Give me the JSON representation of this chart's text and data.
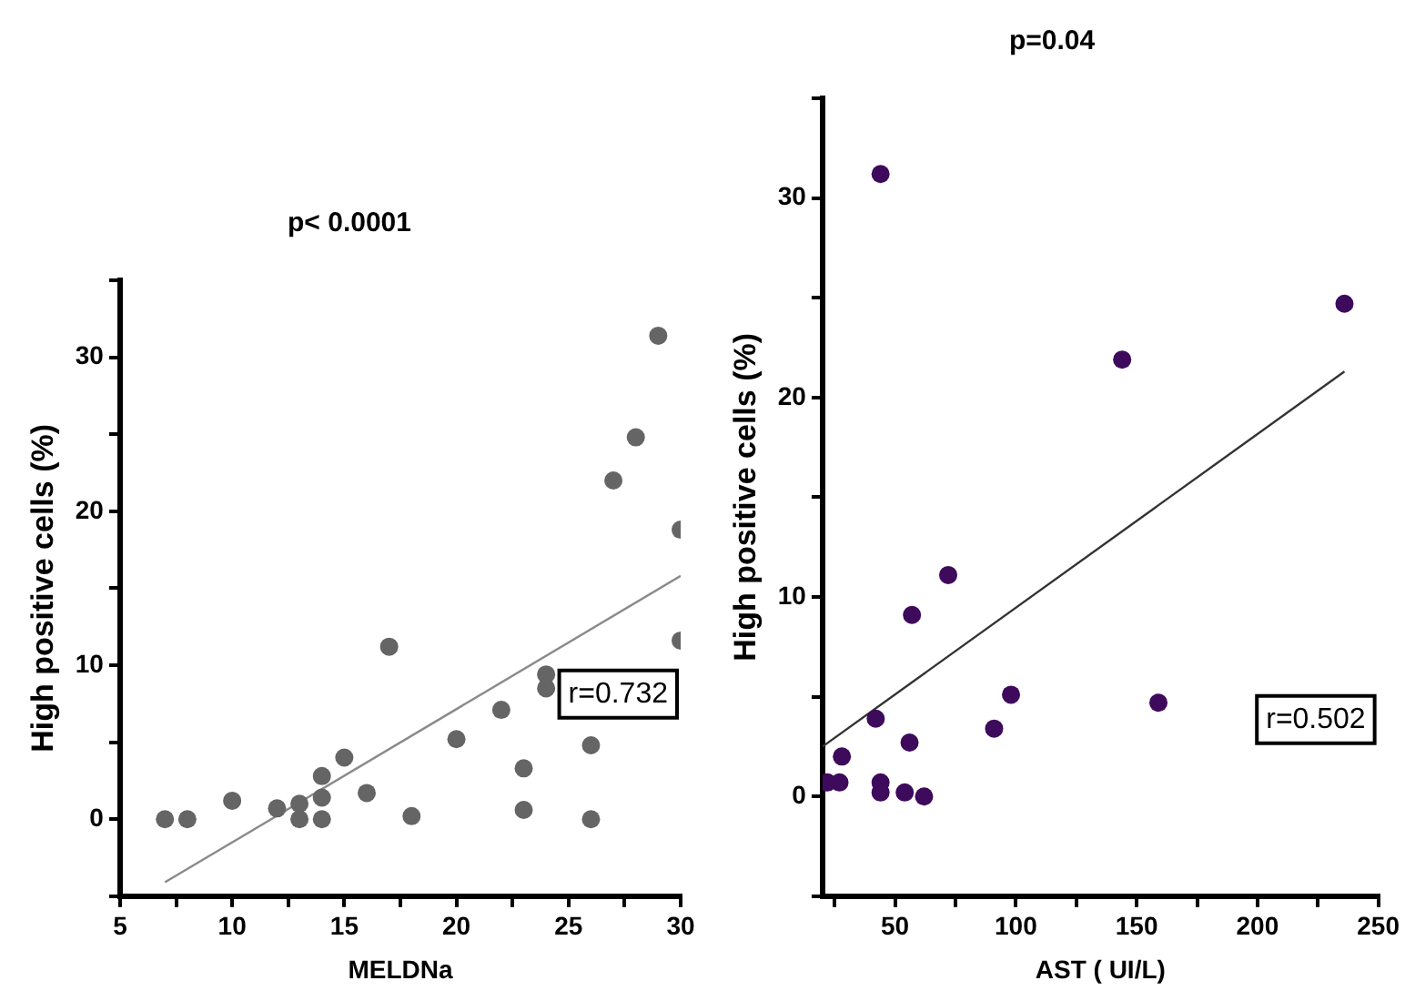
{
  "chart_data": [
    {
      "type": "scatter",
      "title": "p< 0.0001",
      "xlabel": "MELDNa",
      "ylabel": "High positive cells (%)",
      "xlim": [
        5,
        30
      ],
      "ylim": [
        -5,
        35
      ],
      "xticks": [
        5,
        {
          "value": 7.5,
          "label": null
        },
        10,
        {
          "value": 12.5,
          "label": null
        },
        15,
        {
          "value": 17.5,
          "label": null
        },
        20,
        {
          "value": 22.5,
          "label": null
        },
        25,
        {
          "value": 27.5,
          "label": null
        },
        30
      ],
      "yticks": [
        {
          "value": -5,
          "label": null
        },
        0,
        {
          "value": 5,
          "label": null
        },
        10,
        {
          "value": 15,
          "label": null
        },
        20,
        {
          "value": 25,
          "label": null
        },
        30,
        {
          "value": 35,
          "label": null
        }
      ],
      "marker": "circle",
      "legend": false,
      "grid": false,
      "annotations": [
        "r=0.732"
      ],
      "series": [
        {
          "color": "#656565",
          "x": [
            7,
            8,
            10,
            12,
            13,
            13,
            14,
            14,
            14,
            15,
            16,
            17,
            18,
            20,
            22,
            23,
            23,
            24,
            24,
            26,
            26,
            27,
            28,
            29,
            30,
            30
          ],
          "values": [
            0,
            0,
            1.2,
            0.7,
            1,
            0,
            2.8,
            1.4,
            0,
            4,
            1.7,
            11.2,
            0.2,
            5.2,
            7.1,
            3.3,
            0.6,
            9.4,
            8.5,
            4.8,
            0,
            22,
            24.8,
            31.4,
            18.8,
            11.6
          ]
        },
        {
          "type": "line",
          "marker": "none",
          "color": "#8a8a8a",
          "x": [
            7,
            30
          ],
          "values": [
            -4.1,
            15.8
          ]
        }
      ]
    },
    {
      "type": "scatter",
      "title": "p=0.04",
      "xlabel": "AST ( UI/L)",
      "ylabel": "High positive cells (%)",
      "xlim": [
        20,
        250
      ],
      "ylim": [
        -5,
        35
      ],
      "xticks": [
        {
          "value": 25,
          "label": null
        },
        50,
        {
          "value": 75,
          "label": null
        },
        100,
        {
          "value": 125,
          "label": null
        },
        150,
        {
          "value": 175,
          "label": null
        },
        200,
        {
          "value": 225,
          "label": null
        },
        250
      ],
      "yticks": [
        {
          "value": -5,
          "label": null
        },
        0,
        {
          "value": 5,
          "label": null
        },
        10,
        {
          "value": 15,
          "label": null
        },
        20,
        {
          "value": 25,
          "label": null
        },
        30,
        {
          "value": 35,
          "label": null
        }
      ],
      "marker": "circle",
      "legend": false,
      "grid": false,
      "annotations": [
        "r=0.502"
      ],
      "series": [
        {
          "color": "#3d0a5c",
          "x": [
            22,
            27,
            28,
            42,
            44,
            44,
            44,
            54,
            56,
            57,
            62,
            72,
            91,
            98,
            144,
            159,
            236
          ],
          "values": [
            0.7,
            0.7,
            2,
            3.9,
            31.2,
            0.7,
            0.2,
            0.2,
            2.7,
            9.1,
            0,
            11.1,
            3.4,
            5.1,
            21.9,
            4.7,
            24.7
          ]
        },
        {
          "type": "line",
          "marker": "none",
          "color": "#333333",
          "x": [
            20,
            236
          ],
          "values": [
            2.5,
            21.3
          ]
        }
      ]
    }
  ]
}
